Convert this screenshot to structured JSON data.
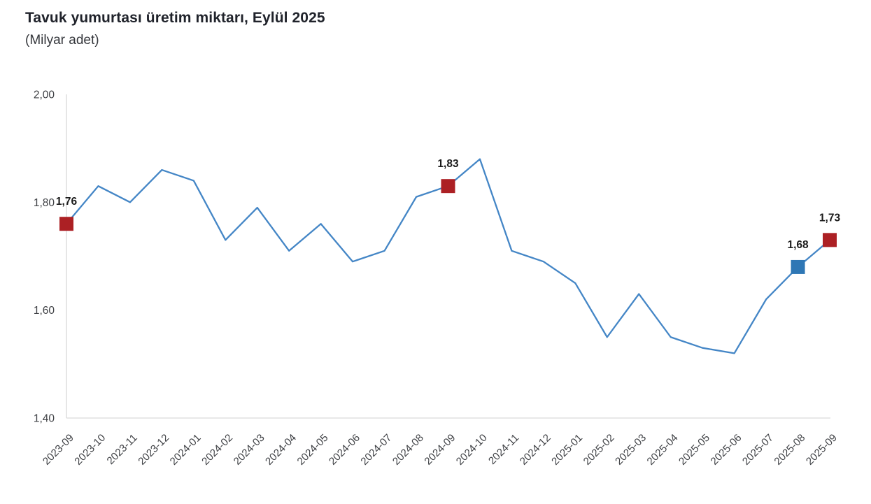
{
  "header": {
    "title": "Tavuk yumurtası üretim miktarı, Eylül 2025",
    "subtitle": "(Milyar adet)"
  },
  "chart_data": {
    "type": "line",
    "title": "Tavuk yumurtası üretim miktarı, Eylül 2025",
    "unit_label": "Milyar adet",
    "x": [
      "2023-09",
      "2023-10",
      "2023-11",
      "2023-12",
      "2024-01",
      "2024-02",
      "2024-03",
      "2024-04",
      "2024-05",
      "2024-06",
      "2024-07",
      "2024-08",
      "2024-09",
      "2024-10",
      "2024-11",
      "2024-12",
      "2025-01",
      "2025-02",
      "2025-03",
      "2025-04",
      "2025-05",
      "2025-06",
      "2025-07",
      "2025-08",
      "2025-09"
    ],
    "values": [
      1.76,
      1.83,
      1.8,
      1.86,
      1.84,
      1.73,
      1.79,
      1.71,
      1.76,
      1.69,
      1.71,
      1.81,
      1.83,
      1.88,
      1.71,
      1.69,
      1.65,
      1.55,
      1.63,
      1.55,
      1.53,
      1.52,
      1.62,
      1.68,
      1.73
    ],
    "ylim": [
      1.4,
      2.0
    ],
    "yticks": [
      2.0,
      1.8,
      1.6,
      1.4
    ],
    "ytick_labels": [
      "2,00",
      "1,80",
      "1,60",
      "1,40"
    ],
    "annotated_points": [
      {
        "x": "2023-09",
        "label": "1,76",
        "color": "#ac2024"
      },
      {
        "x": "2024-09",
        "label": "1,83",
        "color": "#ac2024"
      },
      {
        "x": "2025-08",
        "label": "1,68",
        "color": "#2e77b5"
      },
      {
        "x": "2025-09",
        "label": "1,73",
        "color": "#ac2024"
      }
    ],
    "line_color": "#4486c6",
    "axis_color": "#d9d9d9",
    "tick_label_color": "#3f4145",
    "value_label_color": "#1b1b1b",
    "grid": false,
    "legend": false
  }
}
